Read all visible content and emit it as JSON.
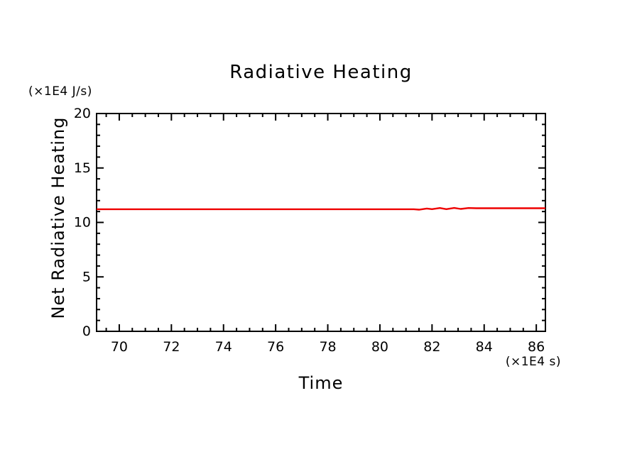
{
  "chart_data": {
    "type": "line",
    "title": "Radiative Heating",
    "xlabel": "Time",
    "ylabel": "Net Radiative Heating",
    "x_unit_label": "(×1E4 s)",
    "y_unit_label": "(×1E4 J/s)",
    "xlim": [
      69.13,
      86.35
    ],
    "ylim": [
      0,
      20
    ],
    "x_major_ticks": [
      70,
      72,
      74,
      76,
      78,
      80,
      82,
      84,
      86
    ],
    "x_minor_step": 0.5,
    "y_major_ticks": [
      0,
      5,
      10,
      15,
      20
    ],
    "y_minor_step": 1,
    "grid": false,
    "legend": "none",
    "frame_style": "closed box, ticks inward on all four sides",
    "colors": {
      "line": "#ee0000",
      "axis": "#000000",
      "text": "#000000",
      "background": "#ffffff"
    },
    "series": [
      {
        "name": "Net Radiative Heating",
        "points": [
          [
            69.13,
            11.21
          ],
          [
            81.3,
            11.21
          ],
          [
            81.5,
            11.17
          ],
          [
            81.8,
            11.28
          ],
          [
            82.0,
            11.22
          ],
          [
            82.3,
            11.32
          ],
          [
            82.55,
            11.22
          ],
          [
            82.85,
            11.33
          ],
          [
            83.1,
            11.24
          ],
          [
            83.4,
            11.32
          ],
          [
            83.7,
            11.3
          ],
          [
            86.35,
            11.3
          ]
        ]
      }
    ]
  }
}
